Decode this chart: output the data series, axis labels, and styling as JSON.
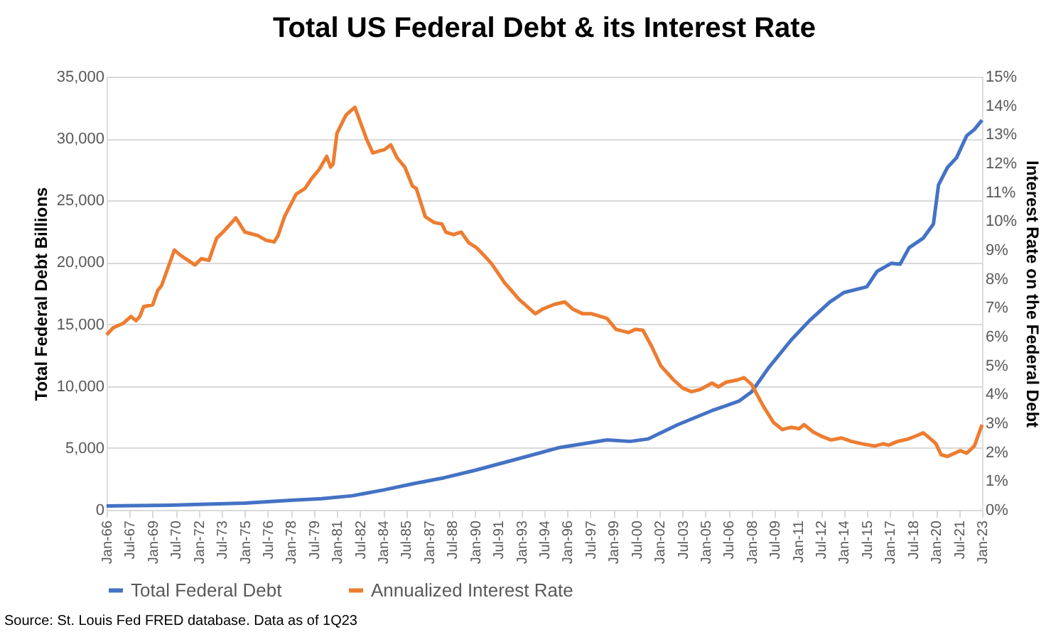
{
  "chart_data": {
    "type": "line",
    "title": "Total US Federal Debt & its Interest Rate",
    "ylabel": "Total Federal Debt Billions",
    "y2label": "Interest Rate on the Federal Debt",
    "annotations": [
      "Source:  St. Louis Fed FRED database.  Data as of 1Q23"
    ],
    "xlim": [
      "1966-01",
      "2023-01"
    ],
    "xticks": [
      {
        "value": "1966-01",
        "label": "Jan-66"
      },
      {
        "value": "1967-07",
        "label": "Jul-67"
      },
      {
        "value": "1969-01",
        "label": "Jan-69"
      },
      {
        "value": "1970-07",
        "label": "Jul-70"
      },
      {
        "value": "1972-01",
        "label": "Jan-72"
      },
      {
        "value": "1973-07",
        "label": "Jul-73"
      },
      {
        "value": "1975-01",
        "label": "Jan-75"
      },
      {
        "value": "1976-07",
        "label": "Jul-76"
      },
      {
        "value": "1978-01",
        "label": "Jan-78"
      },
      {
        "value": "1979-07",
        "label": "Jul-79"
      },
      {
        "value": "1981-01",
        "label": "Jan-81"
      },
      {
        "value": "1982-07",
        "label": "Jul-82"
      },
      {
        "value": "1984-01",
        "label": "Jan-84"
      },
      {
        "value": "1985-07",
        "label": "Jul-85"
      },
      {
        "value": "1987-01",
        "label": "Jan-87"
      },
      {
        "value": "1988-07",
        "label": "Jul-88"
      },
      {
        "value": "1990-01",
        "label": "Jan-90"
      },
      {
        "value": "1991-07",
        "label": "Jul-91"
      },
      {
        "value": "1993-01",
        "label": "Jan-93"
      },
      {
        "value": "1994-07",
        "label": "Jul-94"
      },
      {
        "value": "1996-01",
        "label": "Jan-96"
      },
      {
        "value": "1997-07",
        "label": "Jul-97"
      },
      {
        "value": "1999-01",
        "label": "Jan-99"
      },
      {
        "value": "2000-07",
        "label": "Jul-00"
      },
      {
        "value": "2002-01",
        "label": "Jan-02"
      },
      {
        "value": "2003-07",
        "label": "Jul-03"
      },
      {
        "value": "2005-01",
        "label": "Jan-05"
      },
      {
        "value": "2006-07",
        "label": "Jul-06"
      },
      {
        "value": "2008-01",
        "label": "Jan-08"
      },
      {
        "value": "2009-07",
        "label": "Jul-09"
      },
      {
        "value": "2011-01",
        "label": "Jan-11"
      },
      {
        "value": "2012-07",
        "label": "Jul-12"
      },
      {
        "value": "2014-01",
        "label": "Jan-14"
      },
      {
        "value": "2015-07",
        "label": "Jul-15"
      },
      {
        "value": "2017-01",
        "label": "Jan-17"
      },
      {
        "value": "2018-07",
        "label": "Jul-18"
      },
      {
        "value": "2020-01",
        "label": "Jan-20"
      },
      {
        "value": "2021-07",
        "label": "Jul-21"
      },
      {
        "value": "2023-01",
        "label": "Jan-23"
      }
    ],
    "ylim": [
      0,
      35000
    ],
    "yticks": [
      {
        "value": 0,
        "label": "0"
      },
      {
        "value": 5000,
        "label": "5,000"
      },
      {
        "value": 10000,
        "label": "10,000"
      },
      {
        "value": 15000,
        "label": "15,000"
      },
      {
        "value": 20000,
        "label": "20,000"
      },
      {
        "value": 25000,
        "label": "25,000"
      },
      {
        "value": 30000,
        "label": "30,000"
      },
      {
        "value": 35000,
        "label": "35,000"
      }
    ],
    "y2lim": [
      0,
      15
    ],
    "y2ticks": [
      {
        "value": 0,
        "label": "0%"
      },
      {
        "value": 1,
        "label": "1%"
      },
      {
        "value": 2,
        "label": "2%"
      },
      {
        "value": 3,
        "label": "3%"
      },
      {
        "value": 4,
        "label": "4%"
      },
      {
        "value": 5,
        "label": "5%"
      },
      {
        "value": 6,
        "label": "6%"
      },
      {
        "value": 7,
        "label": "7%"
      },
      {
        "value": 8,
        "label": "8%"
      },
      {
        "value": 9,
        "label": "9%"
      },
      {
        "value": 10,
        "label": "10%"
      },
      {
        "value": 11,
        "label": "11%"
      },
      {
        "value": 12,
        "label": "12%"
      },
      {
        "value": 13,
        "label": "13%"
      },
      {
        "value": 14,
        "label": "14%"
      },
      {
        "value": 15,
        "label": "15%"
      }
    ],
    "grid": "y",
    "legend": "bottom",
    "series": [
      {
        "name": "Total Federal Debt",
        "color": "#4472c4",
        "x": [
          "1966-01",
          "1970-01",
          "1975-01",
          "1978-01",
          "1980-01",
          "1982-01",
          "1984-01",
          "1986-01",
          "1988-01",
          "1990-01",
          "1992-06",
          "1995-07",
          "1998-08",
          "2000-02",
          "2001-04",
          "2003-03",
          "2005-06",
          "2007-03",
          "2008-01",
          "2009-02",
          "2010-08",
          "2011-10",
          "2013-02",
          "2014-01",
          "2015-07",
          "2016-03",
          "2017-02",
          "2017-09",
          "2018-04",
          "2019-03",
          "2019-11",
          "2020-03",
          "2020-10",
          "2021-05",
          "2022-01",
          "2022-07",
          "2023-01"
        ],
        "values": [
          320,
          370,
          540,
          780,
          900,
          1140,
          1600,
          2120,
          2600,
          3200,
          4000,
          5040,
          5650,
          5530,
          5730,
          6870,
          8020,
          8780,
          9540,
          11450,
          13740,
          15270,
          16790,
          17560,
          18020,
          19270,
          19920,
          19850,
          21180,
          21950,
          23090,
          26260,
          27670,
          28440,
          30230,
          30730,
          31490
        ]
      },
      {
        "name": "Annualized Interest Rate",
        "color": "#ed7d31",
        "axis": "y2",
        "x": [
          "1966-01",
          "1966-06",
          "1967-02",
          "1967-08",
          "1967-12",
          "1968-03",
          "1968-06",
          "1969-01",
          "1969-05",
          "1969-08",
          "1970-06",
          "1970-10",
          "1971-10",
          "1972-03",
          "1972-09",
          "1973-03",
          "1973-08",
          "1974-06",
          "1975-01",
          "1975-11",
          "1976-06",
          "1976-12",
          "1977-03",
          "1977-08",
          "1978-05",
          "1978-12",
          "1979-05",
          "1979-11",
          "1980-05",
          "1980-08",
          "1980-10",
          "1981-01",
          "1981-08",
          "1981-12",
          "1982-03",
          "1982-12",
          "1983-05",
          "1983-11",
          "1984-02",
          "1984-07",
          "1984-12",
          "1985-06",
          "1985-12",
          "1986-03",
          "1986-10",
          "1987-05",
          "1987-11",
          "1988-02",
          "1988-08",
          "1989-02",
          "1989-08",
          "1990-02",
          "1990-09",
          "1991-02",
          "1991-12",
          "1992-05",
          "1992-11",
          "1993-12",
          "1994-06",
          "1995-03",
          "1995-11",
          "1996-05",
          "1997-01",
          "1997-08",
          "1998-08",
          "1999-03",
          "2000-01",
          "2000-06",
          "2000-12",
          "2001-07",
          "2002-02",
          "2002-12",
          "2003-07",
          "2004-02",
          "2004-09",
          "2005-06",
          "2005-11",
          "2006-05",
          "2007-02",
          "2007-07",
          "2008-01",
          "2008-10",
          "2009-06",
          "2010-01",
          "2010-08",
          "2011-02",
          "2011-06",
          "2012-01",
          "2012-08",
          "2013-03",
          "2013-11",
          "2014-07",
          "2015-03",
          "2016-01",
          "2016-08",
          "2016-12",
          "2017-07",
          "2018-03",
          "2018-10",
          "2019-03",
          "2019-09",
          "2020-01",
          "2020-05",
          "2020-10",
          "2021-08",
          "2022-01",
          "2022-07",
          "2023-01"
        ],
        "values": [
          6.06,
          6.3,
          6.46,
          6.7,
          6.55,
          6.7,
          7.04,
          7.1,
          7.6,
          7.77,
          9.0,
          8.84,
          8.48,
          8.7,
          8.64,
          9.41,
          9.62,
          10.11,
          9.62,
          9.5,
          9.33,
          9.28,
          9.5,
          10.15,
          10.93,
          11.13,
          11.46,
          11.78,
          12.24,
          11.87,
          11.98,
          13.04,
          13.67,
          13.83,
          13.94,
          12.85,
          12.36,
          12.44,
          12.47,
          12.64,
          12.19,
          11.87,
          11.21,
          11.13,
          10.15,
          9.95,
          9.9,
          9.62,
          9.53,
          9.62,
          9.25,
          9.08,
          8.76,
          8.51,
          7.86,
          7.61,
          7.3,
          6.79,
          6.96,
          7.12,
          7.2,
          6.96,
          6.79,
          6.79,
          6.63,
          6.25,
          6.14,
          6.25,
          6.22,
          5.65,
          4.99,
          4.5,
          4.22,
          4.09,
          4.17,
          4.39,
          4.26,
          4.42,
          4.5,
          4.58,
          4.34,
          3.6,
          3.03,
          2.78,
          2.86,
          2.81,
          2.95,
          2.7,
          2.54,
          2.42,
          2.49,
          2.37,
          2.29,
          2.21,
          2.29,
          2.24,
          2.37,
          2.45,
          2.57,
          2.67,
          2.45,
          2.29,
          1.91,
          1.85,
          2.05,
          1.96,
          2.21,
          2.95
        ]
      }
    ]
  }
}
